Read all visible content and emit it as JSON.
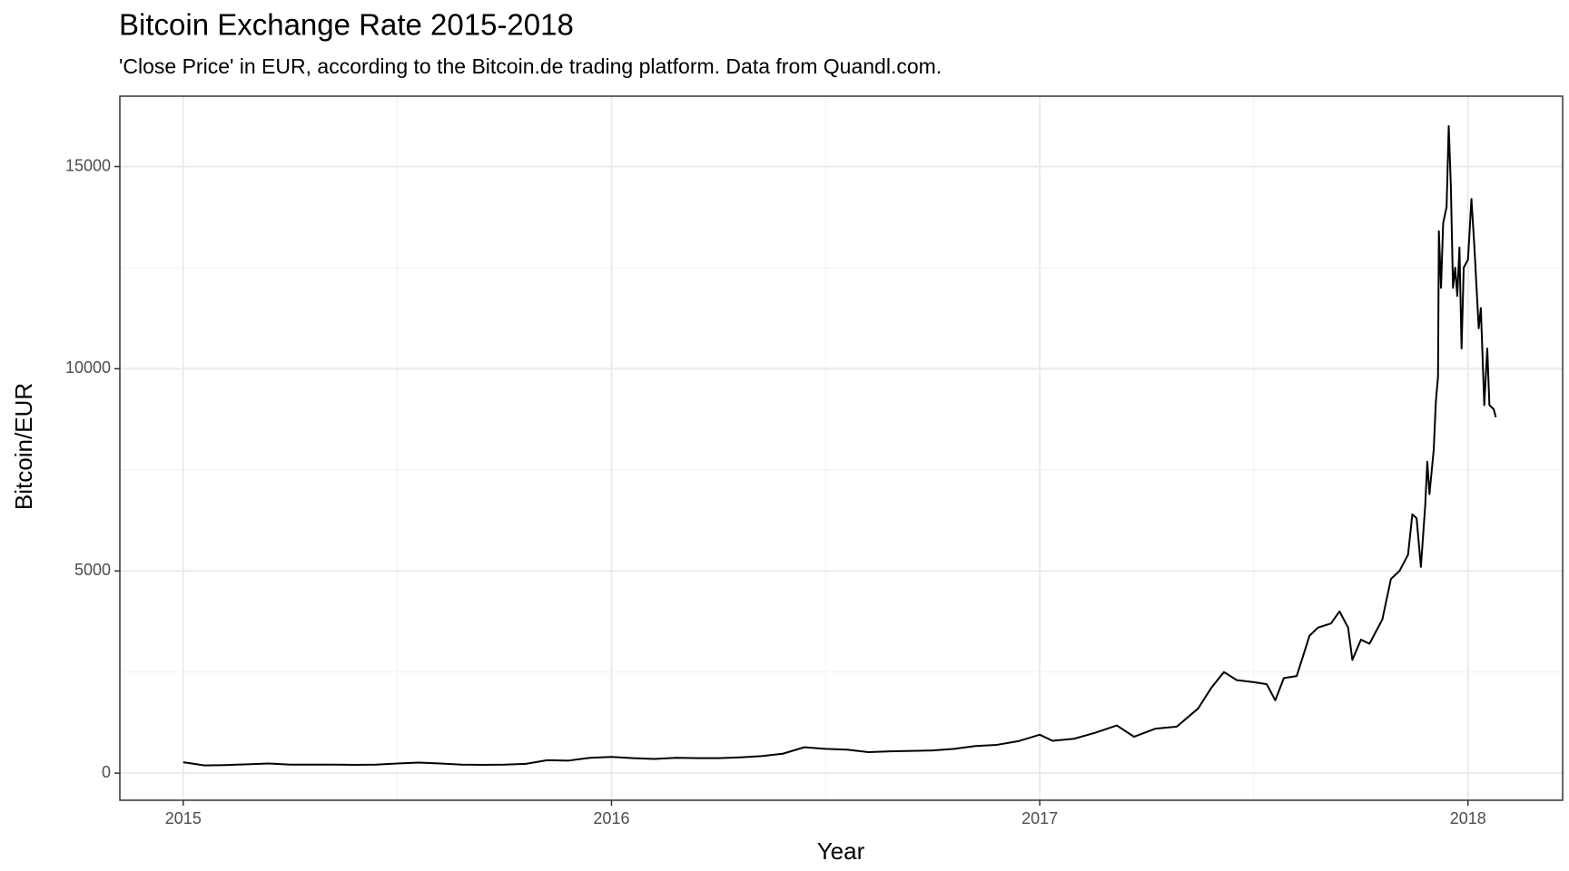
{
  "chart_data": {
    "type": "line",
    "title": "Bitcoin Exchange Rate 2015-2018",
    "subtitle": "'Close Price' in EUR, according to the Bitcoin.de trading platform. Data from Quandl.com.",
    "x_label": "Year",
    "y_label": "Bitcoin/EUR",
    "x": [
      2015.0,
      2015.05,
      2015.1,
      2015.15,
      2015.2,
      2015.25,
      2015.3,
      2015.35,
      2015.4,
      2015.45,
      2015.5,
      2015.55,
      2015.6,
      2015.65,
      2015.7,
      2015.75,
      2015.8,
      2015.85,
      2015.9,
      2015.95,
      2016.0,
      2016.05,
      2016.1,
      2016.15,
      2016.2,
      2016.25,
      2016.3,
      2016.35,
      2016.4,
      2016.45,
      2016.5,
      2016.55,
      2016.6,
      2016.65,
      2016.7,
      2016.75,
      2016.8,
      2016.85,
      2016.9,
      2016.95,
      2017.0,
      2017.03,
      2017.08,
      2017.13,
      2017.18,
      2017.22,
      2017.27,
      2017.32,
      2017.37,
      2017.4,
      2017.43,
      2017.46,
      2017.5,
      2017.53,
      2017.55,
      2017.57,
      2017.6,
      2017.63,
      2017.65,
      2017.68,
      2017.7,
      2017.72,
      2017.73,
      2017.75,
      2017.77,
      2017.8,
      2017.82,
      2017.84,
      2017.86,
      2017.87,
      2017.88,
      2017.89,
      2017.9,
      2017.905,
      2017.91,
      2017.92,
      2017.925,
      2017.93,
      2017.932,
      2017.937,
      2017.942,
      2017.95,
      2017.955,
      2017.96,
      2017.965,
      2017.97,
      2017.975,
      2017.98,
      2017.985,
      2017.99,
      2018.0,
      2018.008,
      2018.015,
      2018.025,
      2018.03,
      2018.038,
      2018.045,
      2018.05,
      2018.06,
      2018.065
    ],
    "series": [
      {
        "color": "#000000",
        "values": [
          270,
          190,
          200,
          220,
          240,
          210,
          210,
          210,
          205,
          210,
          240,
          260,
          240,
          210,
          205,
          210,
          230,
          320,
          310,
          380,
          400,
          370,
          350,
          380,
          370,
          370,
          390,
          420,
          480,
          640,
          600,
          580,
          520,
          540,
          550,
          560,
          600,
          670,
          700,
          790,
          950,
          800,
          850,
          1000,
          1180,
          900,
          1100,
          1150,
          1600,
          2100,
          2500,
          2300,
          2250,
          2200,
          1800,
          2350,
          2400,
          3400,
          3600,
          3700,
          4000,
          3600,
          2800,
          3300,
          3200,
          3800,
          4800,
          5000,
          5400,
          6400,
          6300,
          5100,
          6600,
          7700,
          6900,
          8000,
          9200,
          9800,
          13400,
          12000,
          13600,
          14000,
          16000,
          14500,
          12000,
          12500,
          11800,
          13000,
          10500,
          12500,
          12700,
          14200,
          13000,
          11000,
          11500,
          9100,
          10500,
          9100,
          9000,
          8800
        ]
      }
    ],
    "xlim": [
      2014.852,
      2018.221
    ],
    "xticks": [
      2015,
      2016,
      2017,
      2018
    ],
    "ylim": [
      -670,
      16740
    ],
    "yticks": [
      0,
      5000,
      10000,
      15000
    ],
    "grid": true,
    "minor_grid": true
  }
}
